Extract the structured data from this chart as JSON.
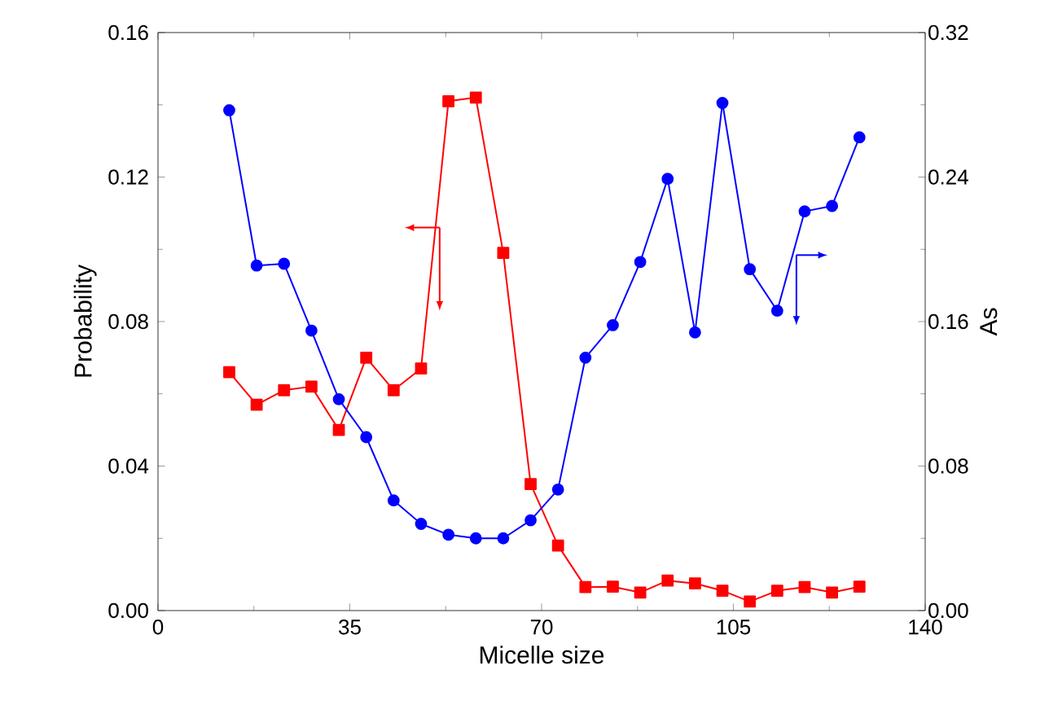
{
  "chart_data": {
    "type": "line",
    "xlabel": "Micelle size",
    "ylabel": "Probability",
    "y2label": "As",
    "x": [
      13,
      18,
      23,
      28,
      33,
      38,
      43,
      48,
      53,
      58,
      63,
      68,
      73,
      78,
      83,
      88,
      93,
      98,
      103,
      108,
      113,
      118,
      123,
      128
    ],
    "series": [
      {
        "name": null,
        "color": "#ff0000",
        "marker": "square",
        "values": [
          0.066,
          0.057,
          0.061,
          0.062,
          0.05,
          0.07,
          0.061,
          0.067,
          0.141,
          0.142,
          0.099,
          0.035,
          0.018,
          0.0065,
          0.0066,
          0.005,
          0.0083,
          0.0075,
          0.0055,
          0.0025,
          0.0055,
          0.0065,
          0.005,
          0.0066
        ]
      },
      {
        "name": null,
        "color": "#0000ff",
        "marker": "circle",
        "axis": "y2",
        "values": [
          0.277,
          0.191,
          0.192,
          0.155,
          0.117,
          0.096,
          0.061,
          0.048,
          0.042,
          0.04,
          0.04,
          0.05,
          0.067,
          0.14,
          0.158,
          0.193,
          0.239,
          0.154,
          0.281,
          0.189,
          0.166,
          0.221,
          0.224,
          0.262
        ]
      }
    ],
    "xlim": [
      0,
      140
    ],
    "xticks": [
      0,
      35,
      70,
      105,
      140
    ],
    "ylim": [
      0,
      0.16
    ],
    "yticks": [
      {
        "value": 0,
        "label": "0.00"
      },
      0.04,
      0.08,
      0.12,
      0.16
    ],
    "y2lim": [
      0,
      0.32
    ],
    "y2ticks": [
      {
        "value": 0,
        "label": "0.00"
      },
      0.08,
      0.16,
      0.24,
      0.32
    ],
    "line_style": "solid"
  }
}
